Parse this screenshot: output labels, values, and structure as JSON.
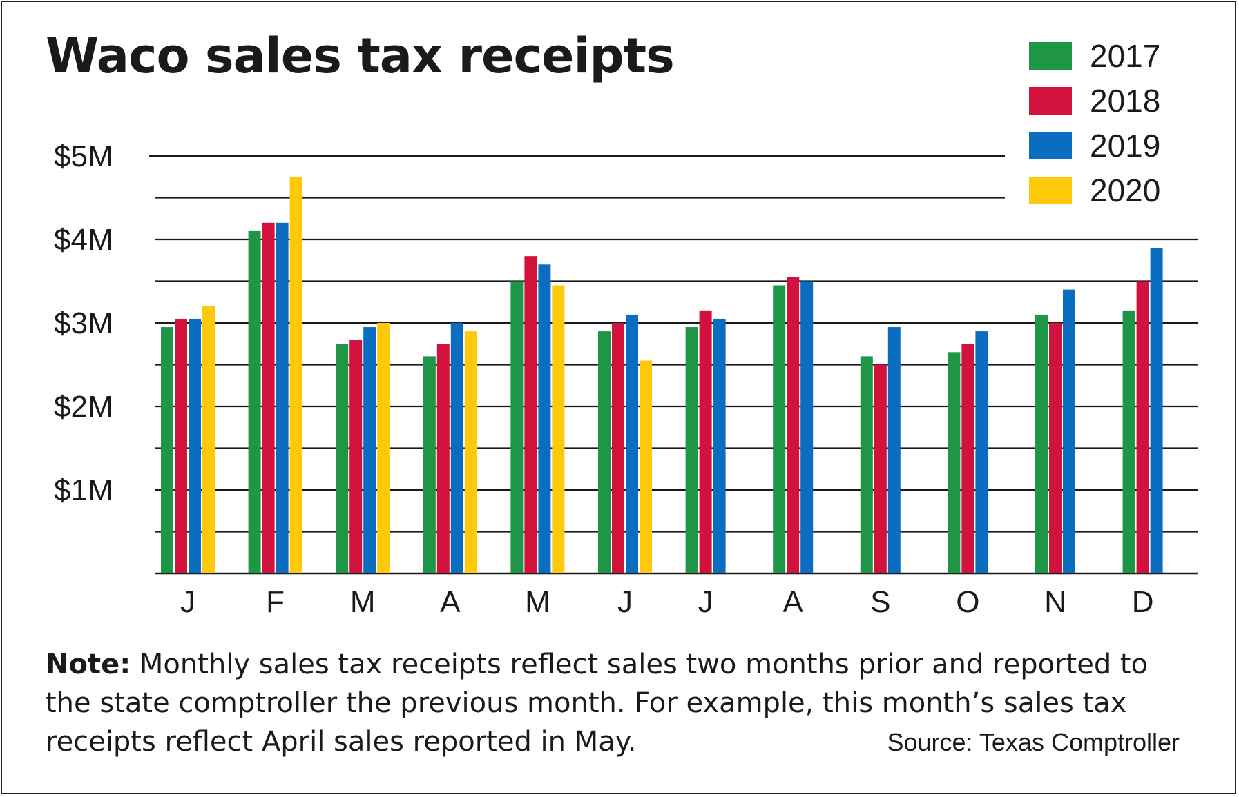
{
  "title": "Waco sales tax receipts",
  "note": {
    "label": "Note:",
    "text": " Monthly sales tax receipts reflect sales two months prior and reported to the state comptroller the previous month. For example, this month’s sales tax receipts reflect April sales reported in May."
  },
  "source": "Source: Texas Comptroller",
  "legend": [
    {
      "label": "2017",
      "color": "#1e9645"
    },
    {
      "label": "2018",
      "color": "#d0123c"
    },
    {
      "label": "2019",
      "color": "#0a6dbf"
    },
    {
      "label": "2020",
      "color": "#ffc90b"
    }
  ],
  "chart_data": {
    "type": "bar",
    "title": "Waco sales tax receipts",
    "xlabel": "",
    "ylabel": "",
    "ylim": [
      0,
      5
    ],
    "y_ticks": [
      {
        "value": 1,
        "label": "$1M"
      },
      {
        "value": 2,
        "label": "$2M"
      },
      {
        "value": 3,
        "label": "$3M"
      },
      {
        "value": 4,
        "label": "$4M"
      },
      {
        "value": 5,
        "label": "$5M"
      }
    ],
    "gridlines": [
      0.5,
      1,
      1.5,
      2,
      2.5,
      3,
      3.5,
      4,
      4.5,
      5
    ],
    "grid": true,
    "legend_position": "top-right",
    "categories": [
      "J",
      "F",
      "M",
      "A",
      "M",
      "J",
      "J",
      "A",
      "S",
      "O",
      "N",
      "D"
    ],
    "series": [
      {
        "name": "2017",
        "color": "#1e9645",
        "values": [
          2.95,
          4.1,
          2.75,
          2.6,
          3.5,
          2.9,
          2.95,
          3.45,
          2.6,
          2.65,
          3.1,
          3.15
        ]
      },
      {
        "name": "2018",
        "color": "#d0123c",
        "values": [
          3.05,
          4.2,
          2.8,
          2.75,
          3.8,
          3.0,
          3.15,
          3.55,
          2.5,
          2.75,
          3.0,
          3.5
        ]
      },
      {
        "name": "2019",
        "color": "#0a6dbf",
        "values": [
          3.05,
          4.2,
          2.95,
          3.0,
          3.7,
          3.1,
          3.05,
          3.5,
          2.95,
          2.9,
          3.4,
          3.9
        ]
      },
      {
        "name": "2020",
        "color": "#ffc90b",
        "values": [
          3.2,
          4.75,
          3.0,
          2.9,
          3.45,
          2.55,
          null,
          null,
          null,
          null,
          null,
          null
        ]
      }
    ]
  }
}
